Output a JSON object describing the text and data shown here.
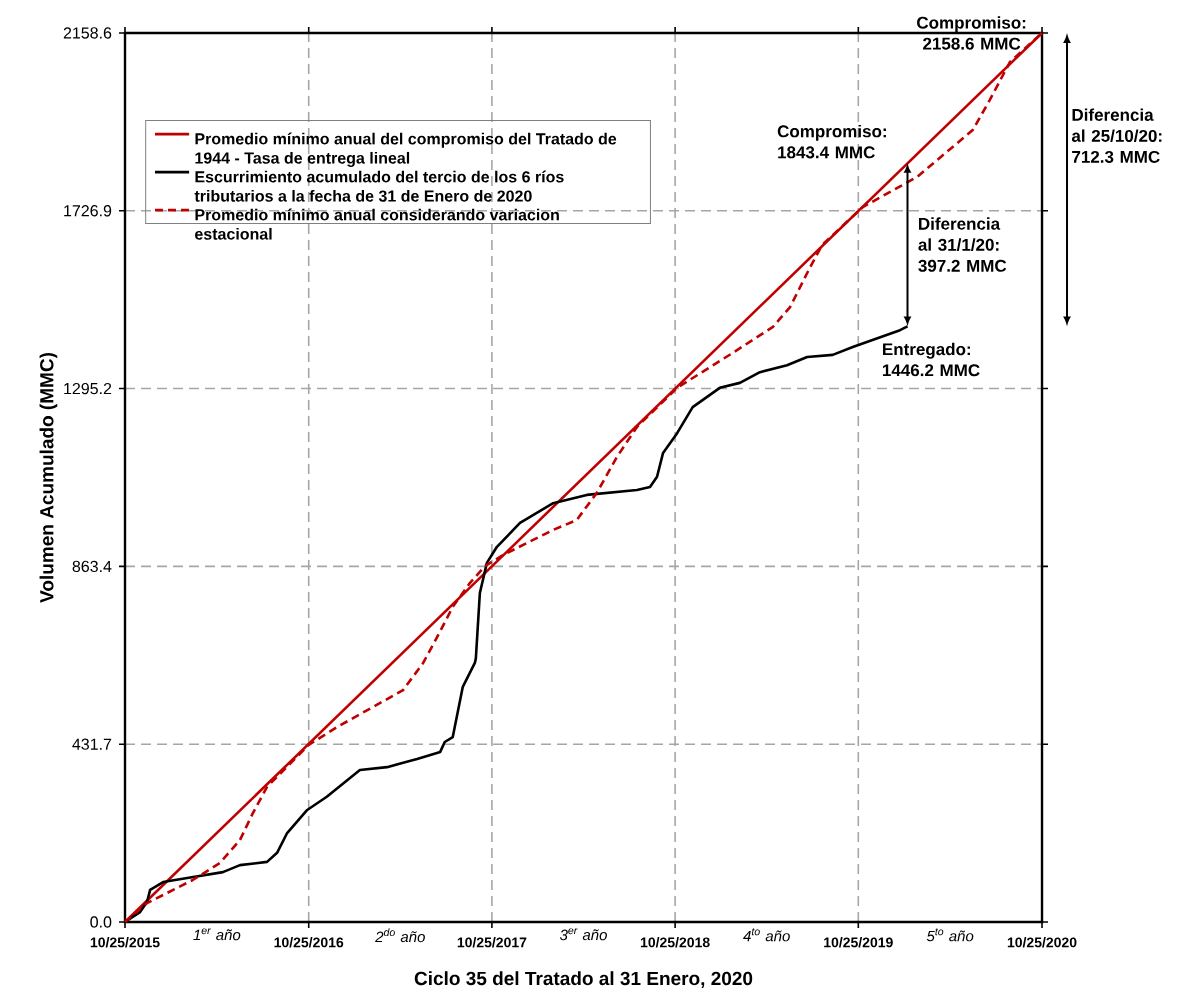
{
  "chart_data": {
    "type": "line",
    "xlabel": "Ciclo 35 del Tratado al 31 Enero, 2020",
    "ylabel": "Volumen Acumulado (MMC)",
    "xlim": [
      "2015-10-25",
      "2020-10-25"
    ],
    "xticks": [
      {
        "value": "2015-10-25",
        "label": "10/25/2015"
      },
      {
        "value": "2016-10-25",
        "label": "10/25/2016"
      },
      {
        "value": "2017-10-25",
        "label": "10/25/2017"
      },
      {
        "value": "2018-10-25",
        "label": "10/25/2018"
      },
      {
        "value": "2019-10-25",
        "label": "10/25/2019"
      },
      {
        "value": "2020-10-25",
        "label": "10/25/2020"
      }
    ],
    "ylim": [
      0,
      2158.6
    ],
    "yticks": [
      {
        "value": 0,
        "label": "0.0"
      },
      431.7,
      863.4,
      1295.2,
      1726.9,
      2158.6
    ],
    "grid": true,
    "legend": "top left",
    "series": [
      {
        "name": "Promedio mínimo anual del compromiso del Tratado de 1944 - Tasa de entrega lineal",
        "color": "#c00000",
        "line_style": "solid",
        "x": [
          "2015-10-25",
          "2020-10-25"
        ],
        "values": [
          0,
          2158.6
        ]
      },
      {
        "name": "Escurrimiento acumulado del tercio de los 6 ríos tributarios a la fecha de 31 de Enero de 2020",
        "color": "#000000",
        "line_style": "solid",
        "x": [
          "2015-10-25",
          "2015-11-24",
          "2015-12-08",
          "2015-12-14",
          "2016-01-09",
          "2016-02-26",
          "2016-05-07",
          "2016-06-10",
          "2016-08-03",
          "2016-08-23",
          "2016-09-12",
          "2016-10-22",
          "2016-11-30",
          "2017-02-04",
          "2017-03-30",
          "2017-05-29",
          "2017-07-14",
          "2017-07-23",
          "2017-08-08",
          "2017-08-28",
          "2017-09-21",
          "2017-09-23",
          "2017-10-01",
          "2017-10-15",
          "2017-11-04",
          "2017-12-20",
          "2018-02-24",
          "2018-05-02",
          "2018-08-10",
          "2018-09-05",
          "2018-09-19",
          "2018-10-01",
          "2018-10-29",
          "2018-11-29",
          "2019-01-22",
          "2019-03-03",
          "2019-04-12",
          "2019-06-05",
          "2019-07-15",
          "2019-09-04",
          "2019-10-14",
          "2020-01-16",
          "2020-01-31"
        ],
        "values": [
          0,
          24,
          49,
          78,
          97,
          107,
          121,
          138,
          146,
          168,
          216,
          272,
          304,
          369,
          376,
          396,
          413,
          437,
          449,
          571,
          629,
          640,
          799,
          872,
          911,
          969,
          1017,
          1037,
          1049,
          1056,
          1081,
          1139,
          1187,
          1250,
          1297,
          1309,
          1335,
          1352,
          1372,
          1377,
          1396,
          1437,
          1446.2
        ]
      },
      {
        "name": "Promedio mínimo anual considerando variacion estacional",
        "color": "#c00000",
        "line_style": "dashed",
        "x": [
          "2015-10-25",
          "2015-12-08",
          "2016-03-08",
          "2016-05-01",
          "2016-06-10",
          "2016-07-06",
          "2016-08-03",
          "2016-10-25",
          "2016-12-20",
          "2017-03-02",
          "2017-05-01",
          "2017-06-10",
          "2017-07-08",
          "2017-08-08",
          "2017-09-11",
          "2017-10-11",
          "2017-11-16",
          "2018-02-24",
          "2018-04-12",
          "2018-05-22",
          "2018-07-01",
          "2018-08-10",
          "2018-10-29",
          "2019-02-17",
          "2019-05-08",
          "2019-06-11",
          "2019-07-21",
          "2019-08-14",
          "2019-11-03",
          "2020-02-19",
          "2020-06-09",
          "2020-07-13",
          "2020-08-22",
          "2020-10-25"
        ],
        "values": [
          0,
          46,
          102,
          143,
          199,
          265,
          328,
          430,
          473,
          522,
          563,
          629,
          692,
          765,
          823,
          864,
          891,
          952,
          976,
          1042,
          1129,
          1202,
          1297,
          1382,
          1445,
          1493,
          1590,
          1644,
          1736,
          1809,
          1923,
          1996,
          2088,
          2158.6
        ]
      }
    ],
    "annotations": [
      {
        "text": "Compromiso: 2158.6 MMC",
        "x": "2020-10-25",
        "y": 2158.6
      },
      {
        "text": "Compromiso: 1843.4 MMC",
        "x": "2020-01-31",
        "y": 1843.4
      },
      {
        "text": "Entregado: 1446.2 MMC",
        "x": "2020-01-31",
        "y": 1446.2
      },
      "Diferencia al 31/1/20: 397.2 MMC",
      "Diferencia al 25/10/20: 712.3 MMC",
      "1$^{er}$ año",
      "2$^{do}$ año",
      "3$^{er}$ año",
      "4$^{to}$ año",
      "5$^{to}$ año"
    ]
  }
}
